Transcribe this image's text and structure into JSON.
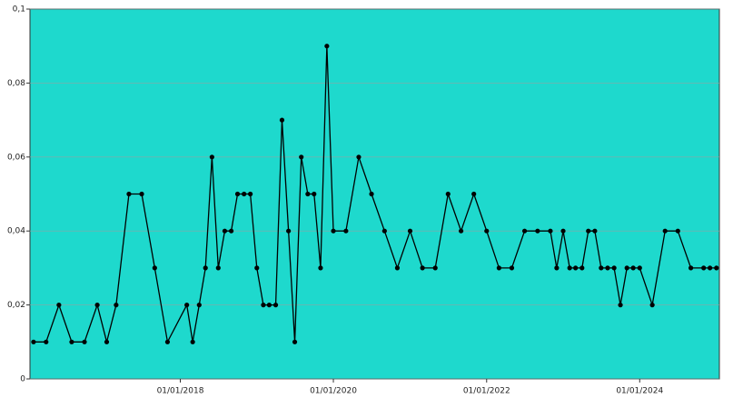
{
  "chart_data": {
    "type": "line",
    "x": [
      "2016-02-01",
      "2016-04-01",
      "2016-06-01",
      "2016-08-01",
      "2016-10-01",
      "2016-12-01",
      "2017-01-15",
      "2017-03-01",
      "2017-05-01",
      "2017-07-01",
      "2017-09-01",
      "2017-11-01",
      "2018-02-01",
      "2018-03-01",
      "2018-04-01",
      "2018-05-01",
      "2018-06-01",
      "2018-07-01",
      "2018-08-01",
      "2018-09-01",
      "2018-10-01",
      "2018-11-01",
      "2018-12-01",
      "2019-01-01",
      "2019-02-01",
      "2019-03-01",
      "2019-04-01",
      "2019-05-01",
      "2019-06-01",
      "2019-07-01",
      "2019-08-01",
      "2019-09-01",
      "2019-10-01",
      "2019-11-01",
      "2019-12-01",
      "2020-01-01",
      "2020-03-01",
      "2020-05-01",
      "2020-07-01",
      "2020-09-01",
      "2020-11-01",
      "2021-01-01",
      "2021-03-01",
      "2021-05-01",
      "2021-07-01",
      "2021-09-01",
      "2021-11-01",
      "2022-01-01",
      "2022-03-01",
      "2022-05-01",
      "2022-07-01",
      "2022-09-01",
      "2022-11-01",
      "2022-12-01",
      "2023-01-01",
      "2023-02-01",
      "2023-03-01",
      "2023-04-01",
      "2023-05-01",
      "2023-06-01",
      "2023-07-01",
      "2023-08-01",
      "2023-09-01",
      "2023-10-01",
      "2023-11-01",
      "2023-12-01",
      "2024-01-01",
      "2024-03-01",
      "2024-05-01",
      "2024-07-01",
      "2024-09-01",
      "2024-11-01",
      "2024-12-01",
      "2025-01-01"
    ],
    "series": [
      {
        "color": "#000000",
        "values": [
          0.01,
          0.01,
          0.02,
          0.01,
          0.01,
          0.02,
          0.01,
          0.02,
          0.05,
          0.05,
          0.03,
          0.01,
          0.02,
          0.01,
          0.02,
          0.03,
          0.06,
          0.03,
          0.04,
          0.04,
          0.05,
          0.05,
          0.05,
          0.03,
          0.02,
          0.02,
          0.02,
          0.07,
          0.04,
          0.01,
          0.06,
          0.05,
          0.05,
          0.03,
          0.09,
          0.04,
          0.04,
          0.06,
          0.05,
          0.04,
          0.03,
          0.04,
          0.03,
          0.03,
          0.05,
          0.04,
          0.05,
          0.04,
          0.03,
          0.03,
          0.04,
          0.04,
          0.04,
          0.03,
          0.04,
          0.03,
          0.03,
          0.03,
          0.04,
          0.04,
          0.03,
          0.03,
          0.03,
          0.02,
          0.03,
          0.03,
          0.03,
          0.02,
          0.04,
          0.04,
          0.03,
          0.03,
          0.03,
          0.03
        ]
      }
    ],
    "xlim": [
      "2016-01-15",
      "2025-01-15"
    ],
    "xticks": [
      {
        "value": "2018-01-01",
        "label": "01/01/2018"
      },
      {
        "value": "2020-01-01",
        "label": "01/01/2020"
      },
      {
        "value": "2022-01-01",
        "label": "01/01/2022"
      },
      {
        "value": "2024-01-01",
        "label": "01/01/2024"
      }
    ],
    "ylim": [
      0,
      0.1
    ],
    "yticks": [
      0,
      {
        "value": 0.02,
        "label": "0,02"
      },
      {
        "value": 0.04,
        "label": "0,04"
      },
      {
        "value": 0.06,
        "label": "0,06"
      },
      {
        "value": 0.08,
        "label": "0,08"
      },
      {
        "value": 0.1,
        "label": "0,1"
      }
    ],
    "grid": true,
    "background": "#1ed9cd"
  }
}
